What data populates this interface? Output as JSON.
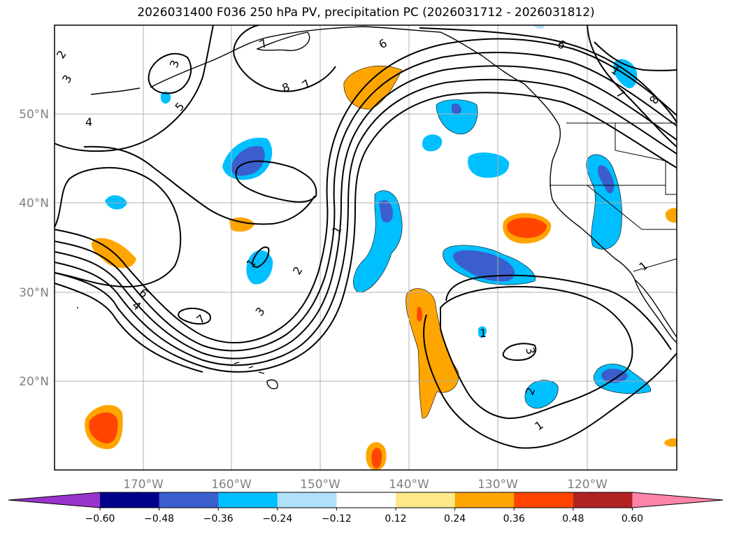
{
  "title": "2026031400 F036 250 hPa PV, precipitation PC (2026031712 - 2026031812)",
  "lon_labels": [
    "170°W",
    "160°W",
    "150°W",
    "140°W",
    "130°W",
    "120°W"
  ],
  "lat_labels": [
    "50°N",
    "40°N",
    "30°N",
    "20°N"
  ],
  "colorbar": {
    "ticks": [
      "−0.60",
      "−0.48",
      "−0.36",
      "−0.24",
      "−0.12",
      "0.12",
      "0.24",
      "0.36",
      "0.48",
      "0.60"
    ],
    "colors": [
      "#9933cc",
      "#00008b",
      "#3a5fcd",
      "#00bfff",
      "#b0e0fa",
      "#ffffff",
      "#ffe88a",
      "#ffa500",
      "#ff4500",
      "#b22222",
      "#ff85a8"
    ]
  },
  "contour_labels": [
    "2",
    "3",
    "4",
    "3",
    "5",
    "7",
    "8",
    "6",
    "6",
    "7",
    "8",
    "1",
    "2",
    "3",
    "4",
    "6",
    "7",
    "1",
    "1",
    "1",
    "3",
    "2",
    "1",
    "1",
    "7"
  ],
  "palette": {
    "frame": "#000000",
    "grid": "#b0b0b0",
    "contour": "#000000",
    "coast": "#000000"
  }
}
